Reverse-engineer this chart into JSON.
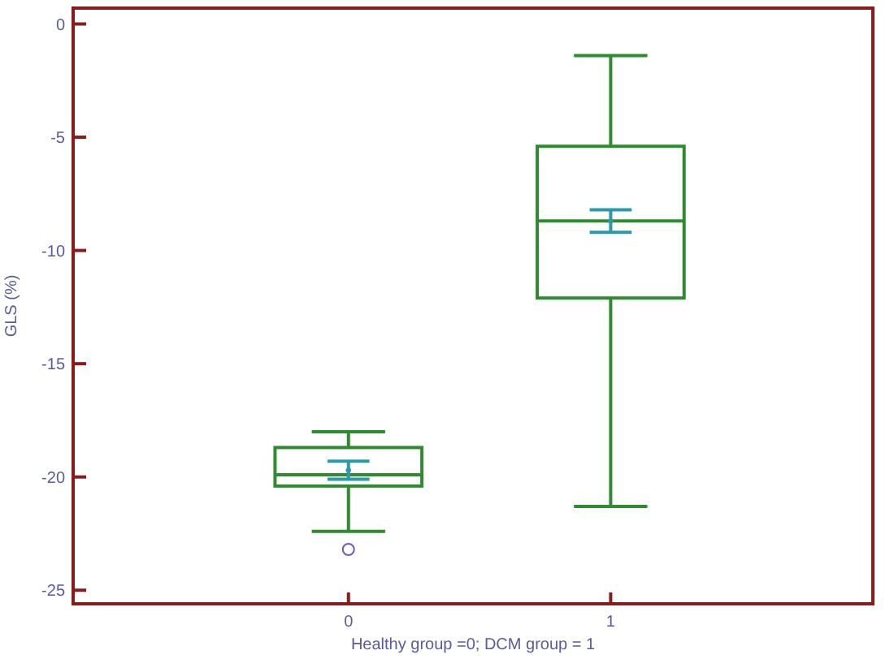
{
  "chart_data": {
    "type": "box",
    "xlabel": "Healthy group =0; DCM group = 1",
    "ylabel": "GLS (%)",
    "categories": [
      "0",
      "1"
    ],
    "ylim": [
      -25.6,
      0.7
    ],
    "yticks": [
      0,
      -5,
      -10,
      -15,
      -20,
      -25
    ],
    "grid": false,
    "series": [
      {
        "type": "box",
        "color": "#2e8b2e",
        "boxes": [
          {
            "low": -22.4,
            "q1": -20.4,
            "median": -19.9,
            "q3": -18.7,
            "high": -18.0,
            "outliers": [
              -23.2
            ]
          },
          {
            "low": -21.3,
            "q1": -12.1,
            "median": -8.7,
            "q3": -5.4,
            "high": -1.4
          }
        ]
      },
      {
        "type": "scatter",
        "color": "#2a9aa8",
        "marker": "circle",
        "x": [
          "0",
          "1"
        ],
        "values": [
          -19.7,
          -8.7
        ],
        "errors": [
          [
            -20.1,
            -19.3
          ],
          [
            -9.2,
            -8.2
          ]
        ]
      }
    ]
  }
}
